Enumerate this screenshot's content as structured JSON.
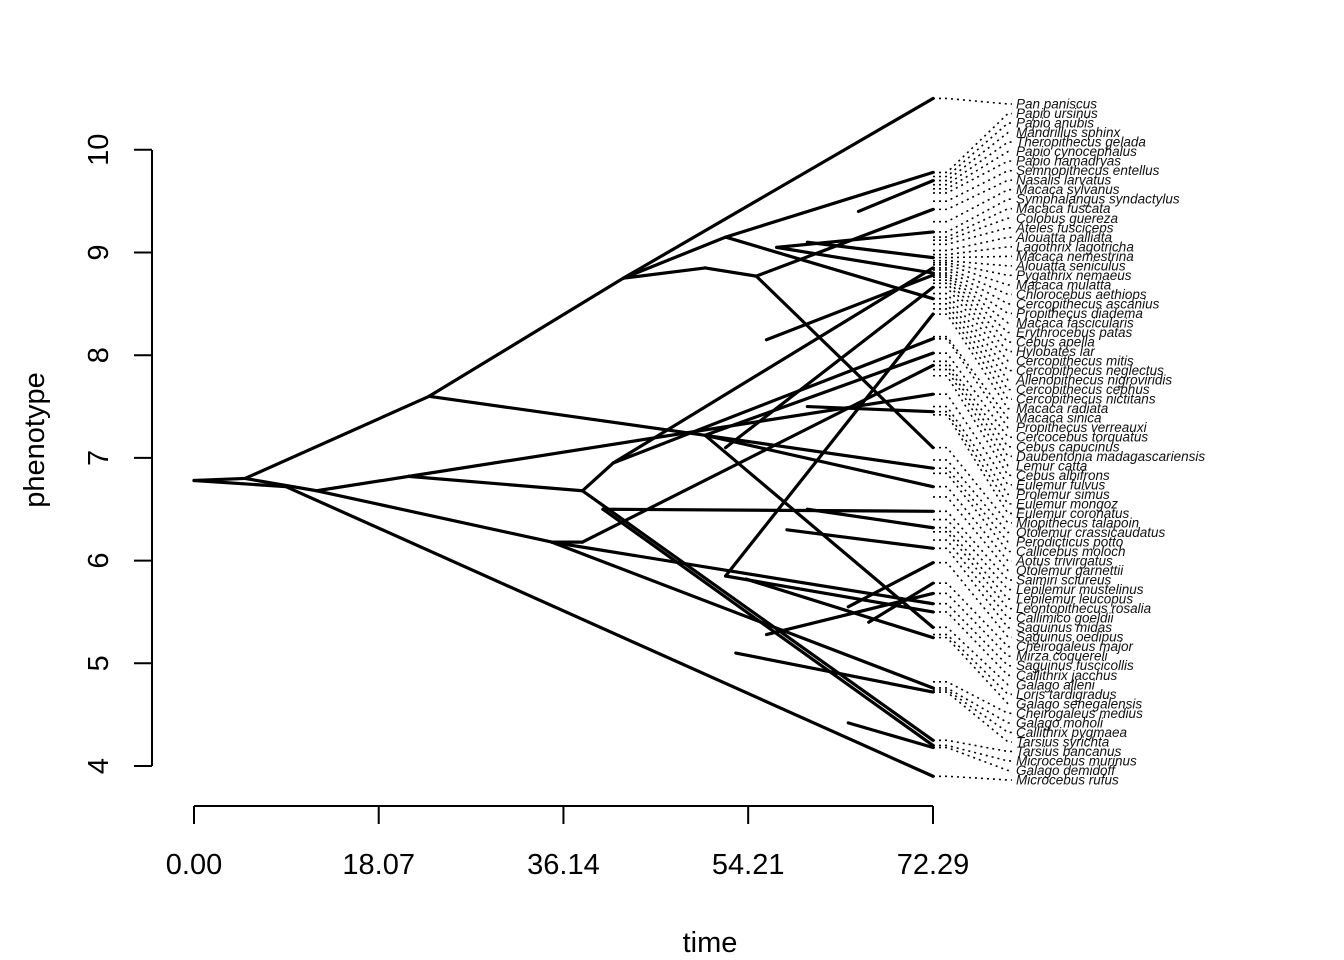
{
  "chart_data": {
    "type": "phenogram",
    "xlabel": "time",
    "ylabel": "phenotype",
    "xlim": [
      0,
      72.29
    ],
    "ylim": [
      3.9,
      10.5
    ],
    "x_ticks": [
      0.0,
      18.07,
      36.14,
      54.21,
      72.29
    ],
    "x_tick_labels": [
      "0.00",
      "18.07",
      "36.14",
      "54.21",
      "72.29"
    ],
    "y_ticks": [
      4,
      5,
      6,
      7,
      8,
      9,
      10
    ],
    "y_tick_labels": [
      "4",
      "5",
      "6",
      "7",
      "8",
      "9",
      "10"
    ],
    "tips": [
      {
        "name": "Pan paniscus",
        "value": 10.5
      },
      {
        "name": "Papio ursinus",
        "value": 9.78
      },
      {
        "name": "Papio anubis",
        "value": 9.74
      },
      {
        "name": "Mandrillus sphinx",
        "value": 9.7
      },
      {
        "name": "Theropithecus gelada",
        "value": 9.66
      },
      {
        "name": "Papio cynocephalus",
        "value": 9.62
      },
      {
        "name": "Papio hamadryas",
        "value": 9.58
      },
      {
        "name": "Semnopithecus entellus",
        "value": 9.5
      },
      {
        "name": "Nasalis larvatus",
        "value": 9.42
      },
      {
        "name": "Macaca sylvanus",
        "value": 9.3
      },
      {
        "name": "Symphalangus syndactylus",
        "value": 9.2
      },
      {
        "name": "Macaca fuscata",
        "value": 9.15
      },
      {
        "name": "Colobus guereza",
        "value": 9.12
      },
      {
        "name": "Ateles fusciceps",
        "value": 9.08
      },
      {
        "name": "Alouatta palliata",
        "value": 9.02
      },
      {
        "name": "Lagothrix lagotricha",
        "value": 8.98
      },
      {
        "name": "Macaca nemestrina",
        "value": 8.95
      },
      {
        "name": "Alouatta seniculus",
        "value": 8.92
      },
      {
        "name": "Pygathrix nemaeus",
        "value": 8.9
      },
      {
        "name": "Macaca mulatta",
        "value": 8.88
      },
      {
        "name": "Chlorocebus aethiops",
        "value": 8.85
      },
      {
        "name": "Cercopithecus ascanius",
        "value": 8.83
      },
      {
        "name": "Propithecus diadema",
        "value": 8.8
      },
      {
        "name": "Macaca fascicularis",
        "value": 8.78
      },
      {
        "name": "Erythrocebus patas",
        "value": 8.76
      },
      {
        "name": "Cebus apella",
        "value": 8.73
      },
      {
        "name": "Hylobates lar",
        "value": 8.7
      },
      {
        "name": "Cercopithecus mitis",
        "value": 8.66
      },
      {
        "name": "Cercopithecus neglectus",
        "value": 8.6
      },
      {
        "name": "Allenopithecus nigroviridis",
        "value": 8.55
      },
      {
        "name": "Cercopithecus cephus",
        "value": 8.5
      },
      {
        "name": "Cercopithecus nictitans",
        "value": 8.45
      },
      {
        "name": "Macaca radiata",
        "value": 8.4
      },
      {
        "name": "Macaca sinica",
        "value": 8.18
      },
      {
        "name": "Propithecus verreauxi",
        "value": 8.16
      },
      {
        "name": "Cercocebus torquatus",
        "value": 8.02
      },
      {
        "name": "Cebus capucinus",
        "value": 7.94
      },
      {
        "name": "Daubentonia madagascariensis",
        "value": 7.9
      },
      {
        "name": "Lemur catta",
        "value": 7.86
      },
      {
        "name": "Cebus albifrons",
        "value": 7.8
      },
      {
        "name": "Eulemur fulvus",
        "value": 7.62
      },
      {
        "name": "Prolemur simus",
        "value": 7.5
      },
      {
        "name": "Eulemur mongoz",
        "value": 7.45
      },
      {
        "name": "Eulemur coronatus",
        "value": 7.42
      },
      {
        "name": "Miopithecus talapoin",
        "value": 7.1
      },
      {
        "name": "Otolemur crassicaudatus",
        "value": 6.98
      },
      {
        "name": "Perodicticus potto",
        "value": 6.9
      },
      {
        "name": "Callicebus moloch",
        "value": 6.85
      },
      {
        "name": "Aotus trivirgatus",
        "value": 6.72
      },
      {
        "name": "Otolemur garnettii",
        "value": 6.62
      },
      {
        "name": "Saimiri sciureus",
        "value": 6.48
      },
      {
        "name": "Lepilemur mustelinus",
        "value": 6.4
      },
      {
        "name": "Lepilemur leucopus",
        "value": 6.32
      },
      {
        "name": "Leontopithecus rosalia",
        "value": 6.28
      },
      {
        "name": "Callimico goeldii",
        "value": 6.2
      },
      {
        "name": "Saguinus midas",
        "value": 6.12
      },
      {
        "name": "Saguinus oedipus",
        "value": 5.98
      },
      {
        "name": "Cheirogaleus major",
        "value": 5.78
      },
      {
        "name": "Mirza coquereli",
        "value": 5.68
      },
      {
        "name": "Saguinus fuscicollis",
        "value": 5.58
      },
      {
        "name": "Callithrix jacchus",
        "value": 5.5
      },
      {
        "name": "Galago alleni",
        "value": 5.35
      },
      {
        "name": "Loris tardigradus",
        "value": 5.28
      },
      {
        "name": "Galago senegalensis",
        "value": 5.25
      },
      {
        "name": "Cheirogaleus medius",
        "value": 4.82
      },
      {
        "name": "Galago moholi",
        "value": 4.76
      },
      {
        "name": "Callithrix pygmaea",
        "value": 4.74
      },
      {
        "name": "Tarsius syrichta",
        "value": 4.72
      },
      {
        "name": "Tarsius bancanus",
        "value": 4.25
      },
      {
        "name": "Microcebus murinus",
        "value": 4.2
      },
      {
        "name": "Galago demidoff",
        "value": 4.18
      },
      {
        "name": "Microcebus rufus",
        "value": 3.9
      }
    ],
    "branches": [
      [
        [
          0.0,
          6.78
        ],
        [
          5.0,
          6.8
        ]
      ],
      [
        [
          0.0,
          6.78
        ],
        [
          9.0,
          6.72
        ]
      ],
      [
        [
          5.0,
          6.8
        ],
        [
          23.0,
          7.6
        ]
      ],
      [
        [
          5.0,
          6.8
        ],
        [
          12.0,
          6.68
        ]
      ],
      [
        [
          9.0,
          6.72
        ],
        [
          72.29,
          3.9
        ]
      ],
      [
        [
          23.0,
          7.6
        ],
        [
          42.0,
          8.75
        ]
      ],
      [
        [
          23.0,
          7.6
        ],
        [
          50.0,
          7.22
        ]
      ],
      [
        [
          42.0,
          8.75
        ],
        [
          72.29,
          10.5
        ]
      ],
      [
        [
          42.0,
          8.75
        ],
        [
          52.0,
          9.15
        ]
      ],
      [
        [
          42.0,
          8.75
        ],
        [
          50.0,
          8.85
        ]
      ],
      [
        [
          52.0,
          9.15
        ],
        [
          72.29,
          9.78
        ]
      ],
      [
        [
          52.0,
          9.15
        ],
        [
          72.29,
          8.55
        ]
      ],
      [
        [
          50.0,
          8.85
        ],
        [
          55.0,
          8.77
        ]
      ],
      [
        [
          55.0,
          8.77
        ],
        [
          72.29,
          9.42
        ]
      ],
      [
        [
          55.0,
          8.77
        ],
        [
          72.29,
          7.1
        ]
      ],
      [
        [
          57.0,
          9.05
        ],
        [
          72.29,
          8.8
        ]
      ],
      [
        [
          57.0,
          9.05
        ],
        [
          72.29,
          9.2
        ]
      ],
      [
        [
          60.0,
          9.1
        ],
        [
          72.29,
          8.95
        ]
      ],
      [
        [
          65.0,
          9.4
        ],
        [
          72.29,
          9.7
        ]
      ],
      [
        [
          12.0,
          6.68
        ],
        [
          21.0,
          6.82
        ]
      ],
      [
        [
          12.0,
          6.68
        ],
        [
          35.0,
          6.18
        ]
      ],
      [
        [
          21.0,
          6.82
        ],
        [
          38.0,
          6.68
        ]
      ],
      [
        [
          21.0,
          6.82
        ],
        [
          72.29,
          7.62
        ]
      ],
      [
        [
          38.0,
          6.68
        ],
        [
          41.0,
          6.95
        ]
      ],
      [
        [
          38.0,
          6.68
        ],
        [
          72.29,
          4.25
        ]
      ],
      [
        [
          41.0,
          6.95
        ],
        [
          72.29,
          8.85
        ]
      ],
      [
        [
          41.0,
          6.95
        ],
        [
          72.29,
          8.16
        ]
      ],
      [
        [
          50.0,
          7.22
        ],
        [
          72.29,
          6.72
        ]
      ],
      [
        [
          50.0,
          7.22
        ],
        [
          72.29,
          8.02
        ]
      ],
      [
        [
          50.0,
          7.22
        ],
        [
          72.29,
          5.35
        ]
      ],
      [
        [
          50.0,
          7.22
        ],
        [
          72.29,
          6.9
        ]
      ],
      [
        [
          52.0,
          7.1
        ],
        [
          72.29,
          8.66
        ]
      ],
      [
        [
          56.0,
          8.15
        ],
        [
          72.29,
          8.78
        ]
      ],
      [
        [
          60.0,
          7.5
        ],
        [
          72.29,
          7.45
        ]
      ],
      [
        [
          35.0,
          6.18
        ],
        [
          72.29,
          5.58
        ]
      ],
      [
        [
          35.0,
          6.18
        ],
        [
          72.29,
          4.76
        ]
      ],
      [
        [
          35.0,
          6.18
        ],
        [
          38.0,
          6.18
        ]
      ],
      [
        [
          38.0,
          6.18
        ],
        [
          72.29,
          7.9
        ]
      ],
      [
        [
          40.0,
          6.5
        ],
        [
          72.29,
          6.48
        ]
      ],
      [
        [
          40.0,
          6.5
        ],
        [
          72.29,
          4.2
        ]
      ],
      [
        [
          52.0,
          5.85
        ],
        [
          72.29,
          5.5
        ]
      ],
      [
        [
          52.0,
          5.85
        ],
        [
          72.29,
          8.4
        ]
      ],
      [
        [
          54.0,
          5.82
        ],
        [
          72.29,
          5.25
        ]
      ],
      [
        [
          53.0,
          5.1
        ],
        [
          72.29,
          4.72
        ]
      ],
      [
        [
          56.0,
          5.28
        ],
        [
          72.29,
          5.68
        ]
      ],
      [
        [
          58.0,
          6.3
        ],
        [
          72.29,
          6.12
        ]
      ],
      [
        [
          64.0,
          5.55
        ],
        [
          72.29,
          5.98
        ]
      ],
      [
        [
          64.0,
          4.42
        ],
        [
          72.29,
          4.18
        ]
      ],
      [
        [
          60.0,
          6.5
        ],
        [
          72.29,
          6.32
        ]
      ],
      [
        [
          66.0,
          5.4
        ],
        [
          72.29,
          5.78
        ]
      ]
    ]
  }
}
